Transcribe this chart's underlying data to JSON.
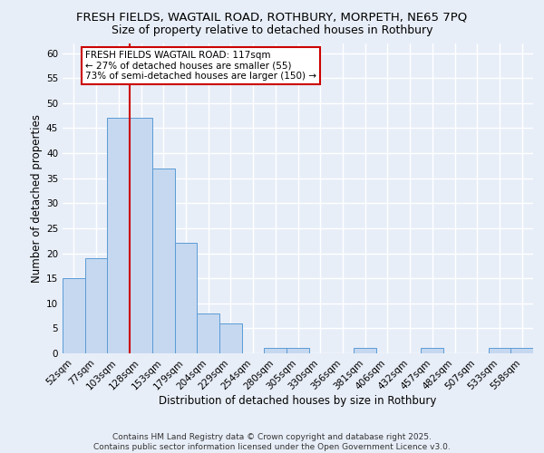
{
  "title": "FRESH FIELDS, WAGTAIL ROAD, ROTHBURY, MORPETH, NE65 7PQ",
  "subtitle": "Size of property relative to detached houses in Rothbury",
  "xlabel": "Distribution of detached houses by size in Rothbury",
  "ylabel": "Number of detached properties",
  "bar_labels": [
    "52sqm",
    "77sqm",
    "103sqm",
    "128sqm",
    "153sqm",
    "179sqm",
    "204sqm",
    "229sqm",
    "254sqm",
    "280sqm",
    "305sqm",
    "330sqm",
    "356sqm",
    "381sqm",
    "406sqm",
    "432sqm",
    "457sqm",
    "482sqm",
    "507sqm",
    "533sqm",
    "558sqm"
  ],
  "bar_values": [
    15,
    19,
    47,
    47,
    37,
    22,
    8,
    6,
    0,
    1,
    1,
    0,
    0,
    1,
    0,
    0,
    1,
    0,
    0,
    1,
    1
  ],
  "bar_color": "#c5d8f0",
  "bar_edge_color": "#5b9bd5",
  "red_line_index": 3,
  "annotation_text": "FRESH FIELDS WAGTAIL ROAD: 117sqm\n← 27% of detached houses are smaller (55)\n73% of semi-detached houses are larger (150) →",
  "annotation_box_color": "white",
  "annotation_box_edge": "#cc0000",
  "ylim": [
    0,
    62
  ],
  "yticks": [
    0,
    5,
    10,
    15,
    20,
    25,
    30,
    35,
    40,
    45,
    50,
    55,
    60
  ],
  "footer": "Contains HM Land Registry data © Crown copyright and database right 2025.\nContains public sector information licensed under the Open Government Licence v3.0.",
  "bg_color": "#e8eef8",
  "plot_bg_color": "#e8eef8",
  "grid_color": "white",
  "title_fontsize": 9.5,
  "subtitle_fontsize": 9,
  "axis_label_fontsize": 8.5,
  "tick_fontsize": 7.5,
  "annotation_fontsize": 7.5,
  "footer_fontsize": 6.5
}
